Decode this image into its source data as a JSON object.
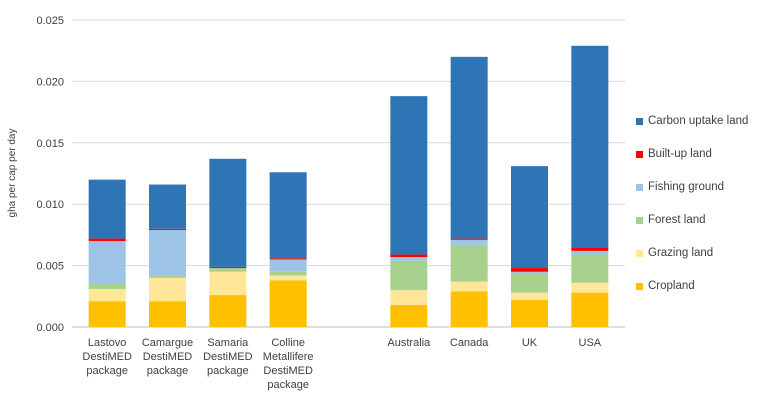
{
  "chart_data": {
    "type": "bar",
    "stacked": true,
    "title": "",
    "xlabel": "",
    "ylabel": "gha per cap per day",
    "ylim": [
      0,
      0.025
    ],
    "yticks": [
      "0.000",
      "0.005",
      "0.010",
      "0.015",
      "0.020",
      "0.025"
    ],
    "grid": true,
    "legend_position": "right",
    "categories": [
      "Lastovo\nDestiMED\npackage",
      "Camargue\nDestiMED\npackage",
      "Samaria\nDestiMED\npackage",
      "Colline\nMetallifere\nDestiMED\npackage",
      "",
      "Australia",
      "Canada",
      "UK",
      "USA"
    ],
    "series": [
      {
        "name": "Cropland",
        "color": "#FFC000",
        "values": [
          0.0021,
          0.0021,
          0.0026,
          0.0038,
          null,
          0.0018,
          0.0029,
          0.0022,
          0.0028
        ]
      },
      {
        "name": "Grazing land",
        "color": "#FFE699",
        "values": [
          0.001,
          0.0019,
          0.0019,
          0.0004,
          null,
          0.0012,
          0.0008,
          0.0006,
          0.0008
        ]
      },
      {
        "name": "Forest land",
        "color": "#A9D18E",
        "values": [
          0.0004,
          0.0002,
          0.0003,
          0.0003,
          null,
          0.0024,
          0.003,
          0.0016,
          0.0023
        ]
      },
      {
        "name": "Fishing ground",
        "color": "#9DC3E6",
        "values": [
          0.0035,
          0.0037,
          0.0,
          0.001,
          null,
          0.0003,
          0.0004,
          0.0001,
          0.0003
        ]
      },
      {
        "name": "Built-up land",
        "color": "#FF0000",
        "values": [
          0.0002,
          0.0001,
          0.0001,
          0.0001,
          null,
          0.0002,
          0.0001,
          0.0003,
          0.0003
        ]
      },
      {
        "name": "Carbon uptake land",
        "color": "#2E75B6",
        "values": [
          0.0048,
          0.0036,
          0.0088,
          0.007,
          null,
          0.0129,
          0.0148,
          0.0083,
          0.0164
        ]
      }
    ]
  }
}
